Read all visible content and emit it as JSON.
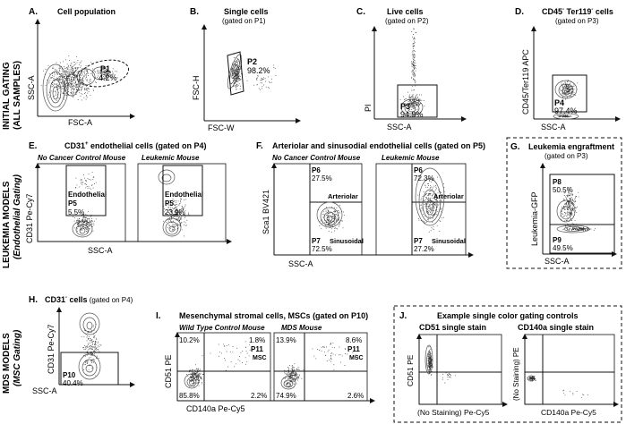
{
  "rows": {
    "row1": "INITIAL GATING",
    "row1_sub": "(ALL SAMPLES)",
    "row2": "LEUKEMIA MODELS",
    "row2_sub": "(Endothelial Gating)",
    "row3": "MDS MODELS",
    "row3_sub": "(MSC Gating)"
  },
  "panels": {
    "A": {
      "letter": "A.",
      "title": "Cell population",
      "xlabel": "FSC-A",
      "ylabel": "SSC-A",
      "gate": "P1",
      "pct": "4.2%"
    },
    "B": {
      "letter": "B.",
      "title": "Single cells",
      "subtitle": "(gated on P1)",
      "xlabel": "FSC-W",
      "ylabel": "FSC-H",
      "gate": "P2",
      "pct": "98.2%"
    },
    "C": {
      "letter": "C.",
      "title": "Live cells",
      "subtitle": "(gated on P2)",
      "xlabel": "SSC-A",
      "ylabel": "PI",
      "gate": "P3",
      "pct": "94.9%"
    },
    "D": {
      "letter": "D.",
      "title_a": "CD45",
      "title_sup1": "-",
      "title_b": " Ter119",
      "title_sup2": "-",
      "title_c": " cells",
      "subtitle": "(gated on P3)",
      "xlabel": "SSC-A",
      "ylabel": "CD45/Ter119 APC",
      "gate": "P4",
      "pct": "97.4%"
    },
    "E": {
      "letter": "E.",
      "title_a": "CD31",
      "title_sup": "+",
      "title_b": " endothelial cells (gated on P4)",
      "left_title": "No Cancer Control Mouse",
      "right_title": "Leukemic Mouse",
      "xlabel": "SSC-A",
      "ylabel": "CD31 Pe-Cy7",
      "gate_name": "Endothelial",
      "gate": "P5",
      "pct_left": "5.5%",
      "pct_right": "23.9%"
    },
    "F": {
      "letter": "F.",
      "title": "Arteriolar and sinusodial endothelial cells (gated on P5)",
      "left_title": "No Cancer Control Mouse",
      "right_title": "Leukemic Mouse",
      "xlabel": "SSC-A",
      "ylabel": "Sca1 BV421",
      "gate_top": "P6",
      "gate_bottom": "P7",
      "label_top": "Arteriolar",
      "label_bottom": "Sinusoidal",
      "left_top_pct": "27.5%",
      "left_bottom_pct": "72.5%",
      "right_top_pct": "72.3%",
      "right_bottom_pct": "27.2%"
    },
    "G": {
      "letter": "G.",
      "title": "Leukemia engraftment",
      "subtitle": "(gated on P3)",
      "xlabel": "SSC-A",
      "ylabel": "Leukemia-GFP",
      "gate_top": "P8",
      "pct_top": "50.5%",
      "gate_bottom": "P9",
      "pct_bottom": "49.5%"
    },
    "H": {
      "letter": "H.",
      "title_a": "CD31",
      "title_sup": "-",
      "title_b": " cells",
      "title_c": " (gated on P4)",
      "xlabel": "SSC-A",
      "ylabel": "CD31 Pe-Cy7",
      "gate": "P10",
      "pct": "40.4%"
    },
    "I": {
      "letter": "I.",
      "title": "Mesenchymal stromal cells, MSCs (gated on P10)",
      "left_title": "Wild Type Control Mouse",
      "right_title": "MDS Mouse",
      "xlabel": "CD140a Pe-Cy5",
      "ylabel": "CD51 PE",
      "gate": "P11",
      "gate_name": "MSC",
      "left": {
        "ul": "10.2%",
        "ur": "1.8%",
        "ll": "85.8%",
        "lr": "2.2%"
      },
      "right": {
        "ul": "13.9%",
        "ur": "8.6%",
        "ll": "74.9%",
        "lr": "2.6%"
      }
    },
    "J": {
      "letter": "J.",
      "title": "Example single color gating controls",
      "left_title": "CD51 single stain",
      "right_title": "CD140a single stain",
      "left_xlabel": "(No Staining) Pe-Cy5",
      "left_ylabel": "CD51 PE",
      "right_xlabel": "CD140a Pe-Cy5",
      "right_ylabel": "(No Staining) PE"
    }
  },
  "colors": {
    "ink": "#111111",
    "contour": "#555555",
    "dots": "#333333"
  }
}
